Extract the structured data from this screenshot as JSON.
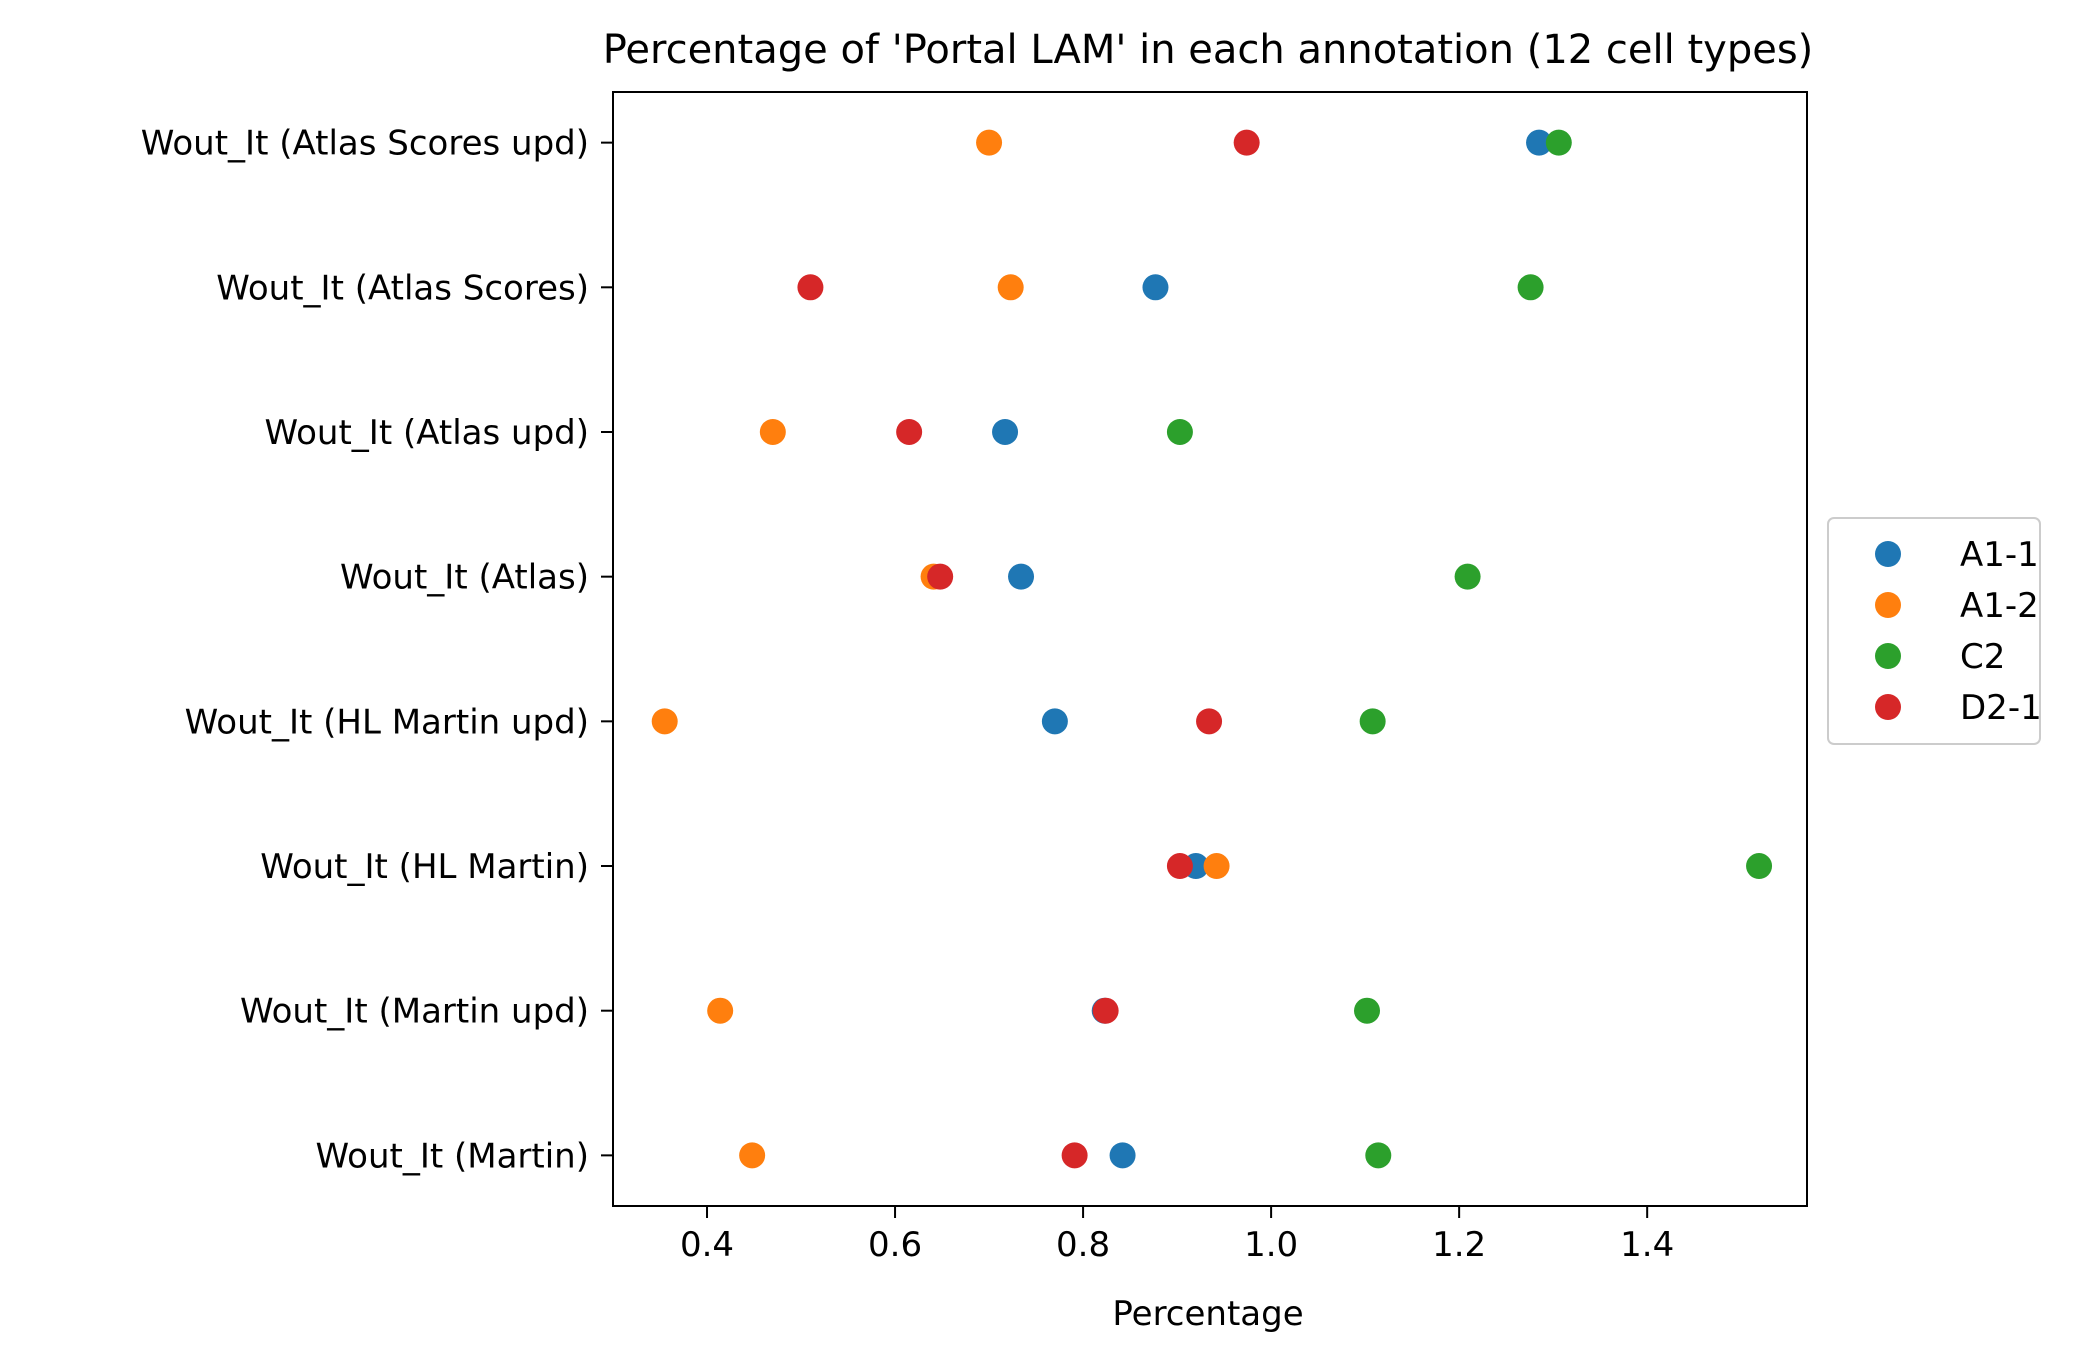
{
  "chart_data": {
    "type": "scatter",
    "title": "Percentage of 'Portal LAM' in each annotation (12 cell types)",
    "xlabel": "Percentage",
    "ylabel": "",
    "xlim": [
      0.3,
      1.57
    ],
    "xticks": [
      0.4,
      0.6,
      0.8,
      1.0,
      1.2,
      1.4
    ],
    "xtick_labels": [
      "0.4",
      "0.6",
      "0.8",
      "1.0",
      "1.2",
      "1.4"
    ],
    "categories": [
      "Wout_It (Atlas Scores upd)",
      "Wout_It (Atlas Scores)",
      "Wout_It (Atlas upd)",
      "Wout_It (Atlas)",
      "Wout_It (HL Martin upd)",
      "Wout_It (HL Martin)",
      "Wout_It (Martin upd)",
      "Wout_It (Martin)"
    ],
    "legend_position": "right-center",
    "grid": false,
    "series": [
      {
        "name": "A1-1",
        "color": "#1f77b4",
        "values": [
          1.285,
          0.877,
          0.717,
          0.734,
          0.77,
          0.92,
          0.823,
          0.842
        ]
      },
      {
        "name": "A1-2",
        "color": "#ff7f0e",
        "values": [
          0.7,
          0.723,
          0.47,
          0.641,
          0.355,
          0.942,
          0.414,
          0.448
        ]
      },
      {
        "name": "C2",
        "color": "#2ca02c",
        "values": [
          1.306,
          1.276,
          0.903,
          1.209,
          1.108,
          1.519,
          1.102,
          1.114
        ]
      },
      {
        "name": "D2-1",
        "color": "#d62728",
        "values": [
          0.974,
          0.51,
          0.615,
          0.648,
          0.934,
          0.903,
          0.824,
          0.791
        ]
      }
    ]
  }
}
